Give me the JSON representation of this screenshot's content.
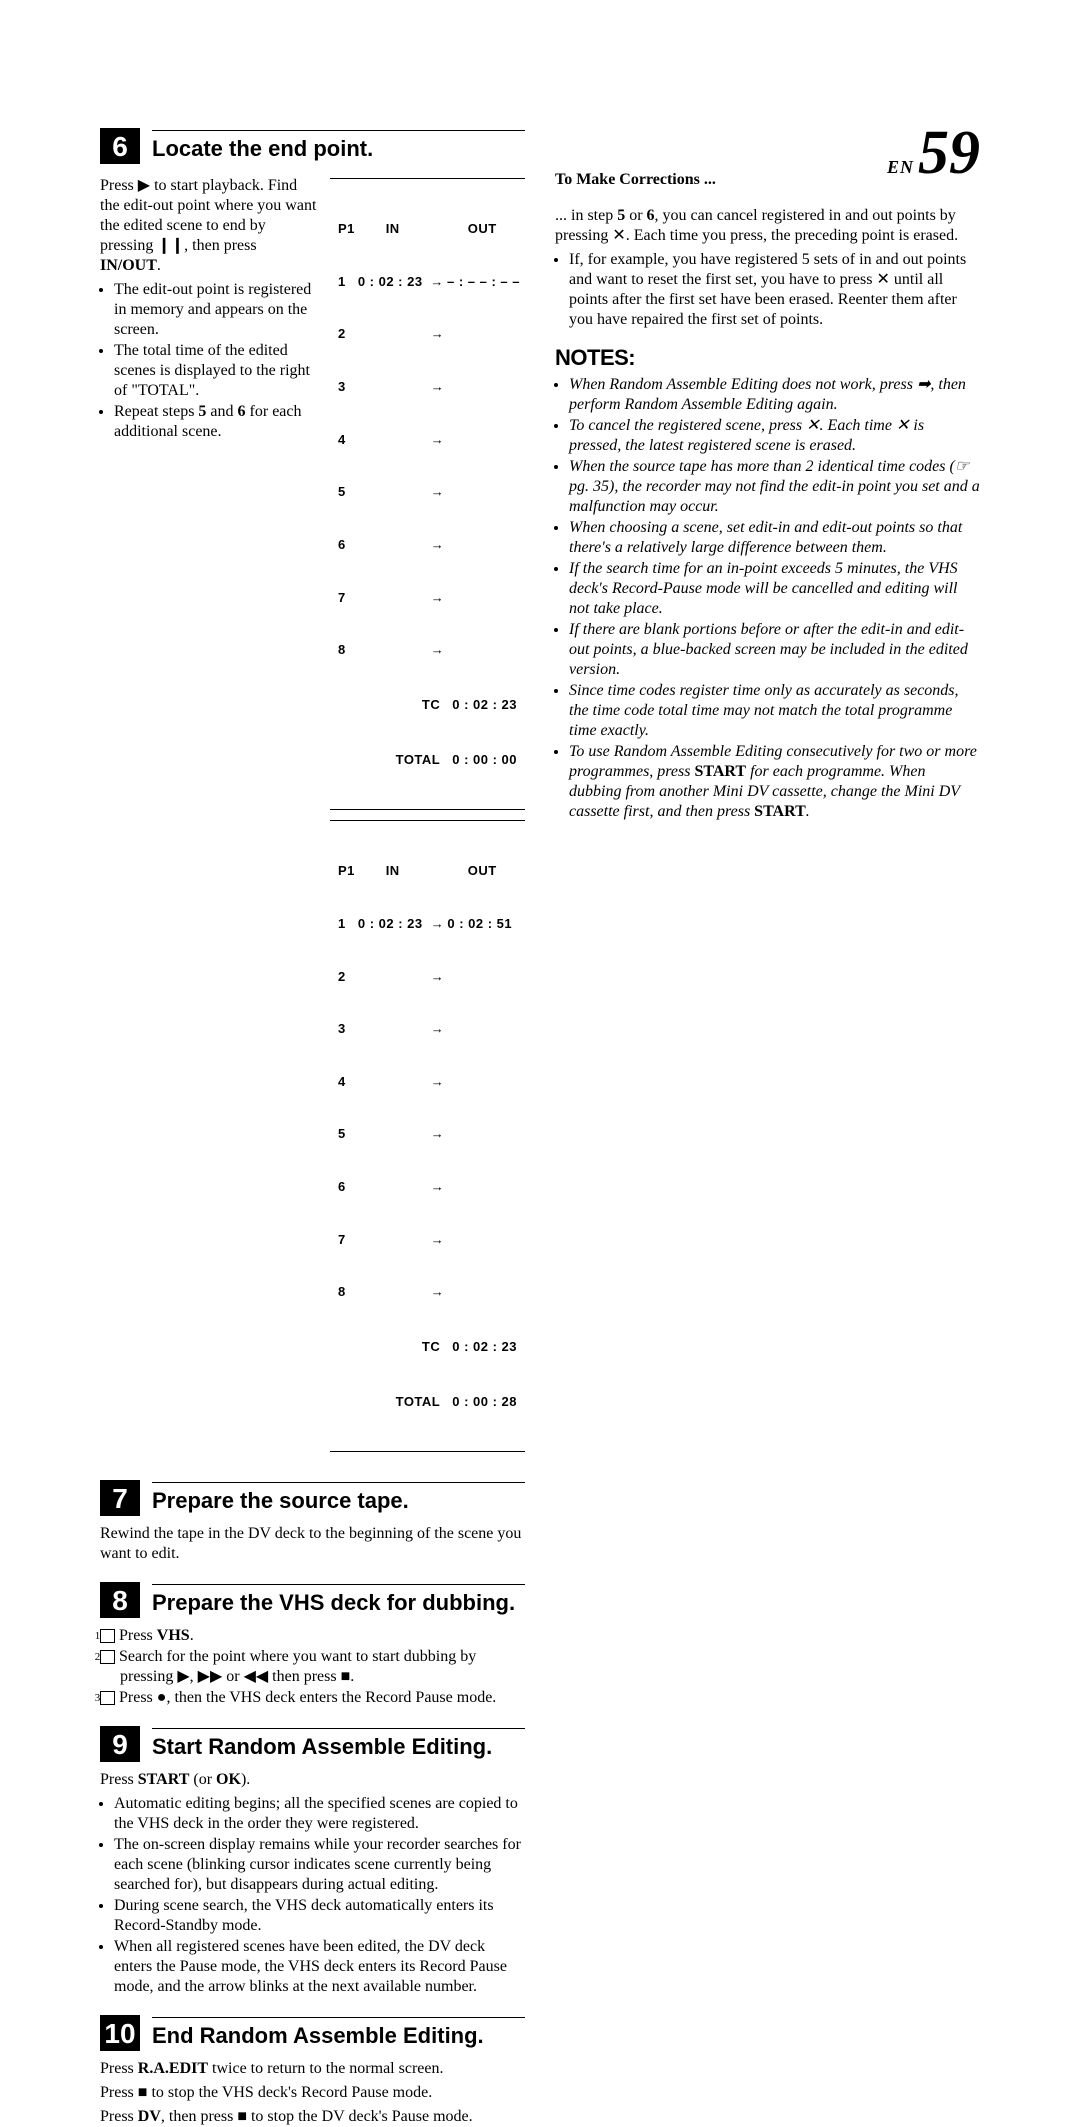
{
  "page": {
    "en": "EN",
    "num": "59"
  },
  "s6": {
    "num": "6",
    "title": "Locate the end point.",
    "para": "Press ▶ to start playback. Find the edit-out point where you want the edited scene to end by pressing ❙❙, then press ",
    "inout": "IN/OUT",
    "b1": "The edit-out point is registered in memory and appears on the screen.",
    "b2": "The total time of the edited scenes is displayed to the right of \"TOTAL\".",
    "b3": "Repeat steps 5 and 6 for each additional scene."
  },
  "osd1": {
    "hP": "P1",
    "hIn": "IN",
    "hOut": "OUT",
    "r1in": "0 : 02 : 23",
    "r1out": "– : – – : – –",
    "rows": [
      "1",
      "2",
      "3",
      "4",
      "5",
      "6",
      "7",
      "8"
    ],
    "tcLabel": "TC",
    "tcVal": "0 : 02 : 23",
    "totLabel": "TOTAL",
    "totVal": "0 : 00 : 00"
  },
  "osd2": {
    "hP": "P1",
    "hIn": "IN",
    "hOut": "OUT",
    "r1in": "0 : 02 : 23",
    "r1out": "0 : 02 : 51",
    "rows": [
      "1",
      "2",
      "3",
      "4",
      "5",
      "6",
      "7",
      "8"
    ],
    "tcLabel": "TC",
    "tcVal": "0 : 02 : 23",
    "totLabel": "TOTAL",
    "totVal": "0 : 00 : 28"
  },
  "s7": {
    "num": "7",
    "title": "Prepare the source tape.",
    "para": "Rewind the tape in the DV deck to the beginning of the scene you want to edit."
  },
  "s8": {
    "num": "8",
    "title": "Prepare the VHS deck for dubbing.",
    "n1": "1",
    "t1a": "Press ",
    "t1b": "VHS",
    "t1c": ".",
    "n2": "2",
    "t2": "Search for the point where you want to start dubbing by pressing ▶, ▶▶ or ◀◀ then press ■.",
    "n3": "3",
    "t3": "Press ●, then the VHS deck enters the Record Pause mode."
  },
  "s9": {
    "num": "9",
    "title": "Start Random Assemble Editing.",
    "lead_a": "Press ",
    "lead_b": "START",
    "lead_c": " (or ",
    "lead_d": "OK",
    "lead_e": ").",
    "b1": "Automatic editing begins; all the specified scenes are copied to the VHS deck in the order they were registered.",
    "b2": "The on-screen display remains while your recorder searches for each scene (blinking cursor indicates scene currently being searched for), but disappears during actual editing.",
    "b3": "During scene search, the VHS deck automatically enters its Record-Standby mode.",
    "b4": "When all registered scenes have been edited, the DV deck enters the Pause mode, the VHS deck enters its Record Pause mode, and the arrow blinks at the next available number."
  },
  "s10": {
    "num": "10",
    "title": "End Random Assemble Editing.",
    "p1a": "Press ",
    "p1b": "R.A.EDIT",
    "p1c": " twice to return to the normal screen.",
    "p2": "Press ■ to stop the VHS deck's Record Pause mode.",
    "p3a": "Press ",
    "p3b": "DV",
    "p3c": ", then press ■ to stop the DV deck's Pause mode."
  },
  "corr": {
    "title": "To Make Corrections ...",
    "p1": "... in step 5 or 6, you can cancel registered in and out points by pressing ✕. Each time you press, the preceding point is erased.",
    "b1": "If, for example, you have registered 5 sets of in and out points and want to reset the first set, you have to press ✕ until all points after the first set have been erased. Reenter them after you have repaired the first set of points."
  },
  "notes": {
    "title": "NOTES:",
    "n1": "When Random Assemble Editing does not work, press ➡, then perform Random Assemble Editing again.",
    "n2": "To cancel the registered scene, press ✕. Each time ✕ is pressed, the latest registered scene is erased.",
    "n3": "When the source tape has more than 2 identical time codes (☞ pg. 35), the recorder may not find the edit-in point you set and a malfunction may occur.",
    "n4": "When choosing a scene, set edit-in and edit-out points so that there's a relatively large difference between them.",
    "n5": "If the search time for an in-point exceeds 5 minutes, the VHS deck's Record-Pause mode will be cancelled and editing will not take place.",
    "n6": "If there are blank portions before or after the edit-in and edit-out points, a blue-backed screen may be included in the edited version.",
    "n7": "Since time codes register time only as accurately as seconds, the time code total time may not match the total programme time exactly.",
    "n8a": "To use Random Assemble Editing consecutively for two or more programmes, press ",
    "n8b": "START",
    "n8c": " for each programme. When dubbing from another Mini DV cassette, change the Mini DV cassette first, and then press ",
    "n8d": "START",
    "n8e": "."
  }
}
